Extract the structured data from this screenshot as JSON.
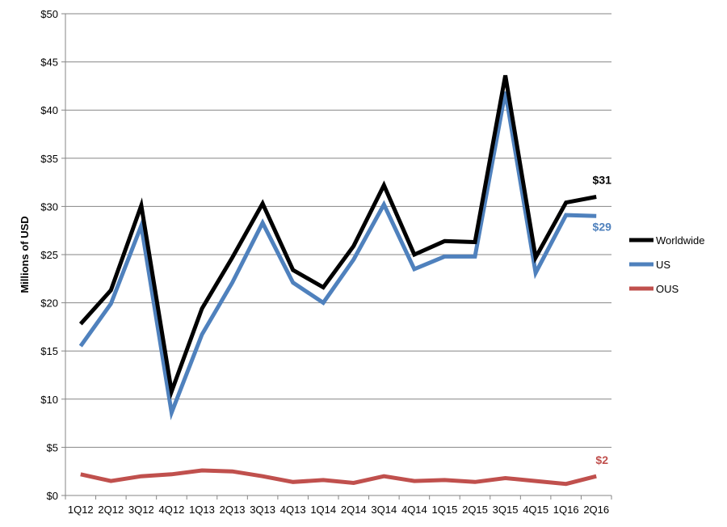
{
  "chart_data": {
    "type": "line",
    "title": "",
    "xlabel": "",
    "ylabel": "Millions of USD",
    "ylim": [
      0,
      50
    ],
    "y_ticks": [
      "$0",
      "$5",
      "$10",
      "$15",
      "$20",
      "$25",
      "$30",
      "$35",
      "$40",
      "$45",
      "$50"
    ],
    "categories": [
      "1Q12",
      "2Q12",
      "3Q12",
      "4Q12",
      "1Q13",
      "2Q13",
      "3Q13",
      "4Q13",
      "1Q14",
      "2Q14",
      "3Q14",
      "4Q14",
      "1Q15",
      "2Q15",
      "3Q15",
      "4Q15",
      "1Q16",
      "2Q16"
    ],
    "grid": "horizontal",
    "legend_position": "right",
    "series": [
      {
        "name": "Worldwide",
        "color": "#000000",
        "values": [
          17.8,
          21.3,
          30.1,
          10.8,
          19.4,
          24.7,
          30.3,
          23.4,
          21.6,
          25.9,
          32.2,
          25.0,
          26.4,
          26.3,
          43.6,
          24.7,
          30.4,
          31.0
        ],
        "end_label": "$31"
      },
      {
        "name": "US",
        "color": "#4f81bd",
        "values": [
          15.5,
          19.9,
          28.0,
          8.6,
          16.7,
          22.1,
          28.3,
          22.1,
          20.0,
          24.5,
          30.2,
          23.5,
          24.8,
          24.8,
          41.9,
          23.1,
          29.1,
          29.0
        ],
        "end_label": "$29"
      },
      {
        "name": "OUS",
        "color": "#c0504d",
        "values": [
          2.2,
          1.5,
          2.0,
          2.2,
          2.6,
          2.5,
          2.0,
          1.4,
          1.6,
          1.3,
          2.0,
          1.5,
          1.6,
          1.4,
          1.8,
          1.5,
          1.2,
          2.0
        ],
        "end_label": "$2"
      }
    ]
  }
}
